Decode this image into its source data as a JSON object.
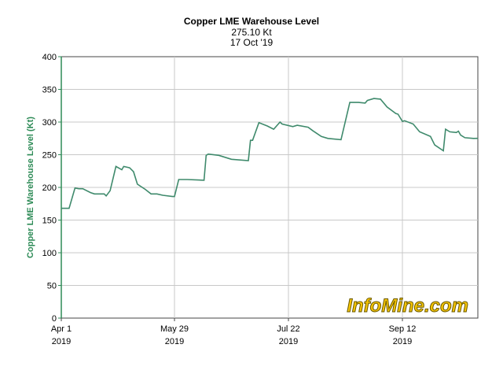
{
  "chart_data": {
    "type": "line",
    "title": "Copper LME Warehouse Level",
    "subtitle": "275.10 Kt",
    "date_label": "17 Oct '19",
    "ylabel": "Copper LME Warehouse Level (Kt)",
    "xlabel": "",
    "ylim": [
      0,
      400
    ],
    "yticks": [
      0,
      50,
      100,
      150,
      200,
      250,
      300,
      350,
      400
    ],
    "xticks": [
      {
        "date": "2019-04-01",
        "label": "Apr 1",
        "year": "2019"
      },
      {
        "date": "2019-05-29",
        "label": "May 29",
        "year": "2019"
      },
      {
        "date": "2019-07-22",
        "label": "Jul 22",
        "year": "2019"
      },
      {
        "date": "2019-09-12",
        "label": "Sep 12",
        "year": "2019"
      }
    ],
    "xlim": [
      "2019-04-01",
      "2019-10-17"
    ],
    "grid": true,
    "line_color": "#3f8a6c",
    "axis_color": "#2e8b57",
    "watermark": "InfoMine.com",
    "series": [
      {
        "points": [
          [
            "2019-04-01",
            168
          ],
          [
            "2019-04-05",
            168
          ],
          [
            "2019-04-08",
            199
          ],
          [
            "2019-04-10",
            198
          ],
          [
            "2019-04-12",
            198
          ],
          [
            "2019-04-16",
            192
          ],
          [
            "2019-04-18",
            190
          ],
          [
            "2019-04-23",
            190
          ],
          [
            "2019-04-24",
            187
          ],
          [
            "2019-04-26",
            195
          ],
          [
            "2019-04-29",
            232
          ],
          [
            "2019-05-02",
            227
          ],
          [
            "2019-05-03",
            232
          ],
          [
            "2019-05-06",
            230
          ],
          [
            "2019-05-08",
            224
          ],
          [
            "2019-05-10",
            205
          ],
          [
            "2019-05-14",
            197
          ],
          [
            "2019-05-17",
            190
          ],
          [
            "2019-05-20",
            190
          ],
          [
            "2019-05-23",
            188
          ],
          [
            "2019-05-28",
            186
          ],
          [
            "2019-05-29",
            186
          ],
          [
            "2019-05-31",
            212
          ],
          [
            "2019-06-04",
            212
          ],
          [
            "2019-06-12",
            211
          ],
          [
            "2019-06-13",
            249
          ],
          [
            "2019-06-14",
            251
          ],
          [
            "2019-06-19",
            249
          ],
          [
            "2019-06-25",
            243
          ],
          [
            "2019-07-03",
            241
          ],
          [
            "2019-07-04",
            272
          ],
          [
            "2019-07-05",
            272
          ],
          [
            "2019-07-08",
            299
          ],
          [
            "2019-07-12",
            294
          ],
          [
            "2019-07-15",
            289
          ],
          [
            "2019-07-18",
            300
          ],
          [
            "2019-07-19",
            297
          ],
          [
            "2019-07-24",
            293
          ],
          [
            "2019-07-26",
            295
          ],
          [
            "2019-07-31",
            292
          ],
          [
            "2019-08-02",
            287
          ],
          [
            "2019-08-06",
            278
          ],
          [
            "2019-08-09",
            275
          ],
          [
            "2019-08-15",
            273
          ],
          [
            "2019-08-19",
            330
          ],
          [
            "2019-08-23",
            330
          ],
          [
            "2019-08-26",
            329
          ],
          [
            "2019-08-27",
            333
          ],
          [
            "2019-08-30",
            336
          ],
          [
            "2019-09-02",
            335
          ],
          [
            "2019-09-05",
            323
          ],
          [
            "2019-09-09",
            313
          ],
          [
            "2019-09-10",
            312
          ],
          [
            "2019-09-12",
            301
          ],
          [
            "2019-09-13",
            302
          ],
          [
            "2019-09-17",
            297
          ],
          [
            "2019-09-20",
            285
          ],
          [
            "2019-09-25",
            278
          ],
          [
            "2019-09-27",
            265
          ],
          [
            "2019-10-01",
            256
          ],
          [
            "2019-10-02",
            289
          ],
          [
            "2019-10-04",
            285
          ],
          [
            "2019-10-07",
            284
          ],
          [
            "2019-10-08",
            286
          ],
          [
            "2019-10-09",
            280
          ],
          [
            "2019-10-11",
            276
          ],
          [
            "2019-10-15",
            275
          ],
          [
            "2019-10-17",
            275.1
          ]
        ]
      }
    ]
  }
}
